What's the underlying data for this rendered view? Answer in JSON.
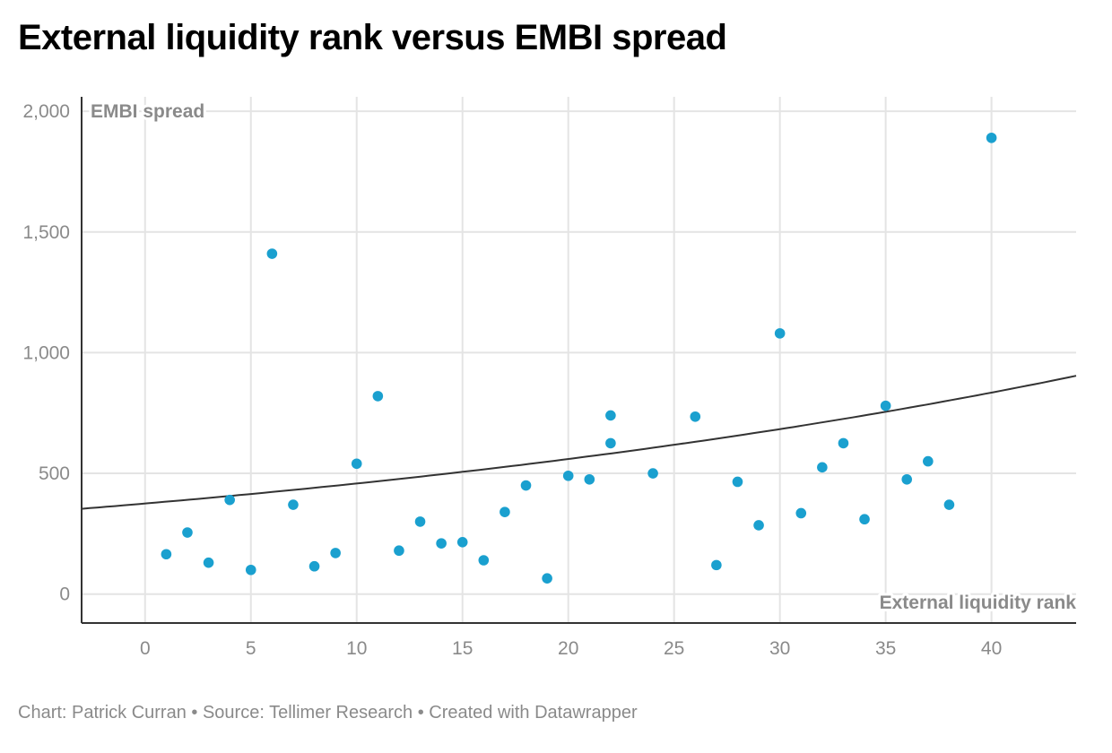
{
  "colors": {
    "point": "#1aa0cf",
    "trend": "#333333",
    "grid": "#e4e4e4",
    "axis": "#333333",
    "text": "#8a8a8a"
  },
  "footer": {
    "credit": "Chart: Patrick Curran",
    "sep1": " • ",
    "source": "Source: Tellimer Research",
    "sep2": " • ",
    "tool": "Created with Datawrapper"
  },
  "chart_data": {
    "type": "scatter",
    "title": "External liquidity rank versus EMBI spread",
    "xlabel": "External liquidity rank",
    "ylabel": "EMBI spread",
    "xlim": [
      -3,
      44
    ],
    "ylim": [
      -120,
      2060
    ],
    "x_ticks": [
      0,
      5,
      10,
      15,
      20,
      25,
      30,
      35,
      40
    ],
    "y_ticks": [
      0,
      500,
      1000,
      1500,
      2000
    ],
    "y_tick_labels": [
      "0",
      "500",
      "1,000",
      "1,500",
      "2,000"
    ],
    "x_tick_labels": [
      "0",
      "5",
      "10",
      "15",
      "20",
      "25",
      "30",
      "35",
      "40"
    ],
    "points": [
      {
        "x": 1,
        "y": 165
      },
      {
        "x": 2,
        "y": 255
      },
      {
        "x": 3,
        "y": 130
      },
      {
        "x": 4,
        "y": 390
      },
      {
        "x": 5,
        "y": 100
      },
      {
        "x": 6,
        "y": 1410
      },
      {
        "x": 7,
        "y": 370
      },
      {
        "x": 8,
        "y": 115
      },
      {
        "x": 9,
        "y": 170
      },
      {
        "x": 10,
        "y": 540
      },
      {
        "x": 11,
        "y": 820
      },
      {
        "x": 12,
        "y": 180
      },
      {
        "x": 13,
        "y": 300
      },
      {
        "x": 14,
        "y": 210
      },
      {
        "x": 15,
        "y": 215
      },
      {
        "x": 16,
        "y": 140
      },
      {
        "x": 17,
        "y": 340
      },
      {
        "x": 18,
        "y": 450
      },
      {
        "x": 19,
        "y": 65
      },
      {
        "x": 20,
        "y": 490
      },
      {
        "x": 21,
        "y": 475
      },
      {
        "x": 22,
        "y": 740
      },
      {
        "x": 22,
        "y": 625
      },
      {
        "x": 24,
        "y": 500
      },
      {
        "x": 26,
        "y": 735
      },
      {
        "x": 27,
        "y": 120
      },
      {
        "x": 28,
        "y": 465
      },
      {
        "x": 29,
        "y": 285
      },
      {
        "x": 30,
        "y": 1080
      },
      {
        "x": 31,
        "y": 335
      },
      {
        "x": 32,
        "y": 525
      },
      {
        "x": 33,
        "y": 625
      },
      {
        "x": 34,
        "y": 310
      },
      {
        "x": 35,
        "y": 780
      },
      {
        "x": 36,
        "y": 475
      },
      {
        "x": 37,
        "y": 550
      },
      {
        "x": 38,
        "y": 370
      },
      {
        "x": 40,
        "y": 1890
      }
    ],
    "trendline": {
      "type": "exponential",
      "a": 375,
      "b": 0.02,
      "x_range": [
        -3,
        44
      ]
    }
  }
}
